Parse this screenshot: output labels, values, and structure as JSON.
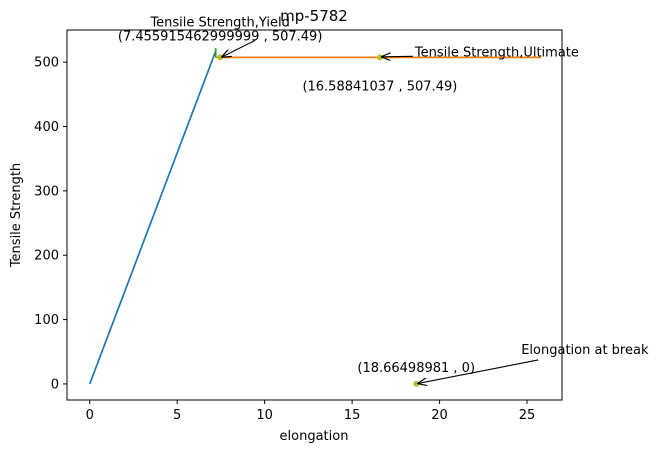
{
  "chart_data": {
    "type": "line",
    "title": "mp-5782",
    "xlabel": "elongation",
    "ylabel": "Tensile Strength",
    "xlim": [
      -1.3,
      27.0
    ],
    "ylim": [
      -25,
      550
    ],
    "xticks": [
      0,
      5,
      10,
      15,
      20,
      25
    ],
    "yticks": [
      0,
      100,
      200,
      300,
      400,
      500
    ],
    "xtick_labels": [
      "0",
      "5",
      "10",
      "15",
      "20",
      "25"
    ],
    "ytick_labels": [
      "0",
      "100",
      "200",
      "300",
      "400",
      "500"
    ],
    "grid": false,
    "series": [
      {
        "color": "#1f77b4",
        "x": [
          0,
          7.2
        ],
        "y": [
          0,
          517
        ]
      },
      {
        "color": "#ff7f0e",
        "x": [
          7.2,
          25.8
        ],
        "y": [
          507.49,
          507.49
        ]
      },
      {
        "color": "#2ca02c",
        "x": [
          7.2,
          7.2
        ],
        "y": [
          507.49,
          522
        ]
      }
    ],
    "points": [
      {
        "x": 7.455915462999999,
        "y": 507.49,
        "color": "#bcbd22"
      },
      {
        "x": 16.58841037,
        "y": 507.49,
        "color": "#bcbd22"
      },
      {
        "x": 18.66498981,
        "y": 0,
        "color": "#bcbd22"
      }
    ],
    "annotations": [
      {
        "label": "Tensile Strength,Yield",
        "value_text": "(7.455915462999999 , 507.49)",
        "x": 7.455915462999999,
        "y": 507.49
      },
      {
        "label": "Tensile Strength,Ultimate",
        "value_text": "(16.58841037 , 507.49)",
        "x": 16.58841037,
        "y": 507.49
      },
      {
        "label": "Elongation at break",
        "value_text": "(18.66498981 , 0)",
        "x": 18.66498981,
        "y": 0
      }
    ]
  }
}
